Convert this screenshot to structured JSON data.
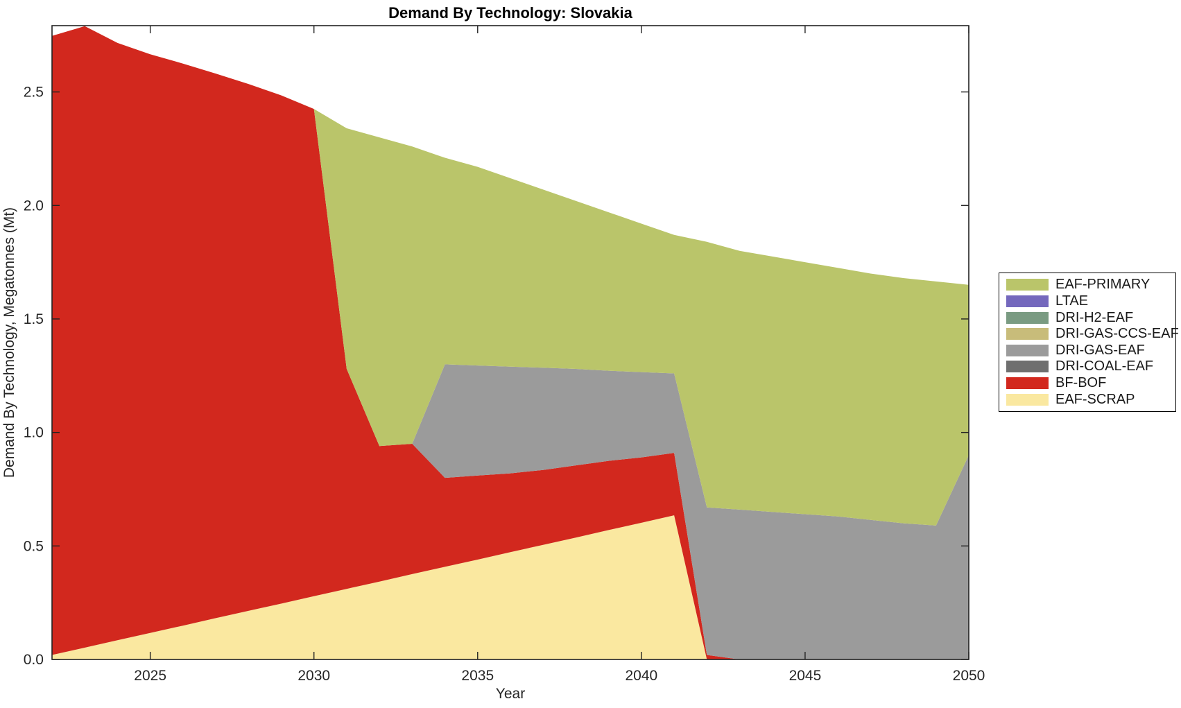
{
  "chart_data": {
    "type": "area",
    "stacked": true,
    "title": "Demand By Technology: Slovakia",
    "xlabel": "Year",
    "ylabel": "Demand By Technology, Megatonnes (Mt)",
    "xlim": [
      2022,
      2050
    ],
    "ylim": [
      0,
      2.792
    ],
    "grid": false,
    "legend_position": "right-outside",
    "legend_order": "top-of-stack-first",
    "x_ticks": [
      "2025",
      "2030",
      "2035",
      "2040",
      "2045",
      "2050"
    ],
    "y_ticks": [
      "0.0",
      "0.5",
      "1.0",
      "1.5",
      "2.0",
      "2.5"
    ],
    "years": [
      2022,
      2023,
      2024,
      2025,
      2026,
      2027,
      2028,
      2029,
      2030,
      2031,
      2032,
      2033,
      2034,
      2035,
      2036,
      2037,
      2038,
      2039,
      2040,
      2041,
      2042,
      2043,
      2044,
      2045,
      2046,
      2047,
      2048,
      2049,
      2050
    ],
    "series": [
      {
        "name": "EAF-SCRAP",
        "color": "#fae8a0",
        "values": [
          0.02,
          0.052,
          0.085,
          0.117,
          0.149,
          0.182,
          0.214,
          0.246,
          0.279,
          0.311,
          0.343,
          0.376,
          0.408,
          0.44,
          0.473,
          0.505,
          0.537,
          0.57,
          0.602,
          0.635,
          0,
          0,
          0,
          0,
          0,
          0,
          0,
          0,
          0
        ]
      },
      {
        "name": "BF-BOF",
        "color": "#d2281e",
        "values": [
          2.727,
          2.738,
          2.631,
          2.549,
          2.476,
          2.399,
          2.321,
          2.239,
          2.146,
          0.969,
          0.597,
          0.574,
          0.392,
          0.37,
          0.347,
          0.33,
          0.318,
          0.305,
          0.288,
          0.275,
          0.02,
          0,
          0,
          0,
          0,
          0,
          0,
          0,
          0
        ]
      },
      {
        "name": "DRI-COAL-EAF",
        "color": "#6f6f6f",
        "values": [
          0,
          0,
          0,
          0,
          0,
          0,
          0,
          0,
          0,
          0,
          0,
          0,
          0,
          0,
          0,
          0,
          0,
          0,
          0,
          0,
          0,
          0,
          0,
          0,
          0,
          0,
          0,
          0,
          0
        ]
      },
      {
        "name": "DRI-GAS-EAF",
        "color": "#9b9b9b",
        "values": [
          0,
          0,
          0,
          0,
          0,
          0,
          0,
          0,
          0,
          0,
          0,
          0,
          0.5,
          0.485,
          0.47,
          0.45,
          0.425,
          0.397,
          0.376,
          0.35,
          0.65,
          0.66,
          0.65,
          0.64,
          0.63,
          0.615,
          0.6,
          0.59,
          0.9
        ]
      },
      {
        "name": "DRI-GAS-CCS-EAF",
        "color": "#c8bc7a",
        "values": [
          0,
          0,
          0,
          0,
          0,
          0,
          0,
          0,
          0,
          0,
          0,
          0,
          0,
          0,
          0,
          0,
          0,
          0,
          0,
          0,
          0,
          0,
          0,
          0,
          0,
          0,
          0,
          0,
          0
        ]
      },
      {
        "name": "DRI-H2-EAF",
        "color": "#7a9b82",
        "values": [
          0,
          0,
          0,
          0,
          0,
          0,
          0,
          0,
          0,
          0,
          0,
          0,
          0,
          0,
          0,
          0,
          0,
          0,
          0,
          0,
          0,
          0,
          0,
          0,
          0,
          0,
          0,
          0,
          0
        ]
      },
      {
        "name": "LTAE",
        "color": "#7468bd",
        "values": [
          0,
          0,
          0,
          0,
          0,
          0,
          0,
          0,
          0,
          0,
          0,
          0,
          0,
          0,
          0,
          0,
          0,
          0,
          0,
          0,
          0,
          0,
          0,
          0,
          0,
          0,
          0,
          0,
          0
        ]
      },
      {
        "name": "EAF-PRIMARY",
        "color": "#bac56a",
        "values": [
          0,
          0,
          0,
          0,
          0,
          0,
          0,
          0,
          0,
          1.06,
          1.36,
          1.31,
          0.91,
          0.875,
          0.83,
          0.785,
          0.74,
          0.698,
          0.654,
          0.61,
          1.17,
          1.14,
          1.125,
          1.11,
          1.095,
          1.085,
          1.08,
          1.075,
          0.75
        ]
      }
    ]
  }
}
